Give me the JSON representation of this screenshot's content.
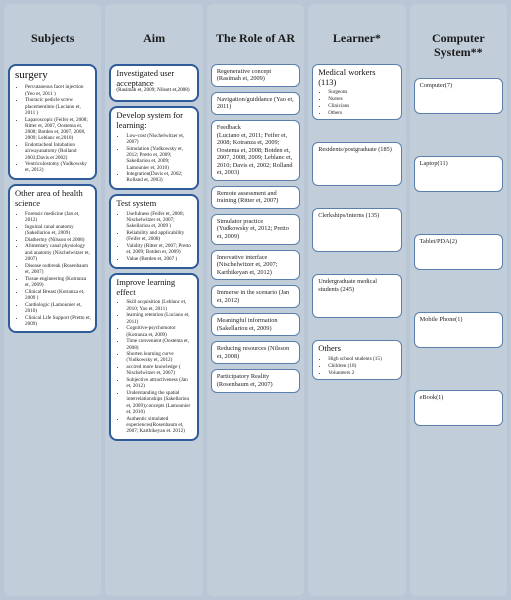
{
  "columns": [
    {
      "header": "Subjects",
      "boxes": [
        {
          "style": "thick",
          "title": "surgery",
          "title_style": "big",
          "items": [
            "Percutaneous facet injection (Yeo et, 2011 )",
            "Thoracic pedicle screw placementinto (Luciano et, 2011 )",
            "Laparoscopic (Feifer et, 2008; Ritter et, 2007, Oostema et, 2008; Botden et, 2007, 2008, 2009; Leblanc et,2010)",
            "Endotracheal Intubation airwayanatomy (Rolland 2003;Davis et 2002)",
            "Ventriculostomy (Yudkowsky et, 2012)"
          ]
        },
        {
          "style": "thick",
          "title": "Other area of health science",
          "items": [
            "Forensic medicine (Jan et, 2012)",
            "Inguinal canal anatomy (Sakellariou et, 2009)",
            "Diathermy (Nilsson et 2008)",
            "Alimentary canal physiology and anatomy (Nischelwitzer et, 2007)",
            "Disease outbreak (Rosenbaum et, 2007)",
            "Tissue engineering (Kotranza et, 2009)",
            "Clinical Breast (Kotranza et, 2009 )",
            "Cardiologic (Lamounier et, 2010)",
            "Clinical Life  Support (Pretto et, 2009)"
          ]
        }
      ]
    },
    {
      "header": "Aim",
      "boxes": [
        {
          "style": "thick",
          "title": "Investigated user acceptance",
          "title_suffix": "(Rasimah et, 2009; Nilsott et,2008)"
        },
        {
          "style": "thick",
          "title": "Develop system for learning:",
          "items": [
            "Low-cost  (Nischelwitzer et, 2007)",
            "Simulation (Yudkowsky et, 2012; Pretto et, 2009; Sakellariou et, 2009; Lamounier et, 2010)",
            "Integration(Davis et, 2002; Rolland et, 2003)"
          ]
        },
        {
          "style": "thick",
          "title": "Test system",
          "items": [
            "Usefulness  (Feifer et, 2008; Nischelwitzer et, 2007; Sakellariou et, 2009 )",
            "Reliability and applicability (Feifer et, 2008)",
            "Validity (Ritter et, 2007; Pretto et, 2009; Botden et, 2009)",
            "Value (Botden et, 2007 )"
          ]
        },
        {
          "style": "thick",
          "title": "Improve learning effect",
          "items": [
            "Skill acquisition  (Leblanc et, 2010; Yao et, 2011)",
            "learning retention  (Luciano et, 2011)",
            "Cognitive-psychomotor (Kotranza et, 2009)",
            "Time  convenient  (Oostema et, 2008)",
            "Shorten learning curve  (Yudkowsky et, 2012)",
            "accired more knowledge ( Nischelwitzer et, 2007)",
            "Subjective attractiveness (Jan et, 2012)",
            "Understanding the spatial interrelationships (Sakellariou et, 2009);concepts (Lamounier et, 2010)",
            "Authentic simulated experiences(Rosenbaum et, 2007; Karthikeyan et. 2012)"
          ]
        }
      ]
    },
    {
      "header": "The Role of AR",
      "boxes": [
        {
          "style": "slim",
          "text": "Regenerative concept (Rasimah et, 2009)"
        },
        {
          "style": "slim",
          "text": "Navigation/guiddance (Yao et, 2011)"
        },
        {
          "style": "slim",
          "text": "Feedback\n(Luciano et, 2011; Feifer et, 2008; Kotranza et, 2009; Oostema et, 2008; Botden et, 2007, 2008, 2009; Leblanc et, 2010; Davis et, 2002; Rolland et, 2003)"
        },
        {
          "style": "slim",
          "text": "Remote assessment and training  (Ritter et, 2007)"
        },
        {
          "style": "slim",
          "text": "Simulator practice (Yudkowsky et, 2012; Pretto et, 2009)"
        },
        {
          "style": "slim",
          "text": "Innovative interface (Nischelwitzer et, 2007; Karthikeyan et, 2012)"
        },
        {
          "style": "slim",
          "text": "Immerse in the scenario (Jan et, 2012)"
        },
        {
          "style": "slim",
          "text": "Meaningful information (Sakellariou et, 2009)"
        },
        {
          "style": "slim",
          "text": "Reducing resources (Nilsson et, 2008)"
        },
        {
          "style": "slim",
          "text": "Participatory Reality (Rosenbaum et, 2007)"
        }
      ]
    },
    {
      "header": "Learner*",
      "boxes": [
        {
          "style": "slim",
          "title": "Medical workers (113)",
          "items": [
            "Surgeons",
            "Nurses",
            "Clinicians",
            "Others"
          ]
        },
        {
          "style": "slim",
          "text": "Residents/postgraduate (185)",
          "tall": true
        },
        {
          "style": "slim",
          "text": "Clerkships/interns (135)",
          "tall": true
        },
        {
          "style": "slim",
          "text": "Undergraduate medical students  (245)",
          "tall": true
        },
        {
          "style": "slim",
          "title": "Others",
          "items": [
            "High school students (15)",
            "Children (18)",
            "Volunteers 2"
          ]
        }
      ]
    },
    {
      "header": "Computer System**",
      "boxes": [
        {
          "style": "slim",
          "text": "Computer(7)",
          "tall": true
        },
        {
          "style": "slim",
          "text": "Laptop(11)",
          "tall": true
        },
        {
          "style": "slim",
          "text": "Tablet/PDA(2)",
          "tall": true
        },
        {
          "style": "slim",
          "text": "Mobile Phone(1)",
          "tall": true
        },
        {
          "style": "slim",
          "text": "eBook(1)",
          "tall": true
        }
      ]
    }
  ],
  "colors": {
    "page_bg": "#b8c6d6",
    "col_bg": "#c1cdd9",
    "box_bg": "#ffffff",
    "border_thick": "#2f5b99",
    "border_slim": "#5a7fad",
    "text": "#1b1b1b"
  }
}
